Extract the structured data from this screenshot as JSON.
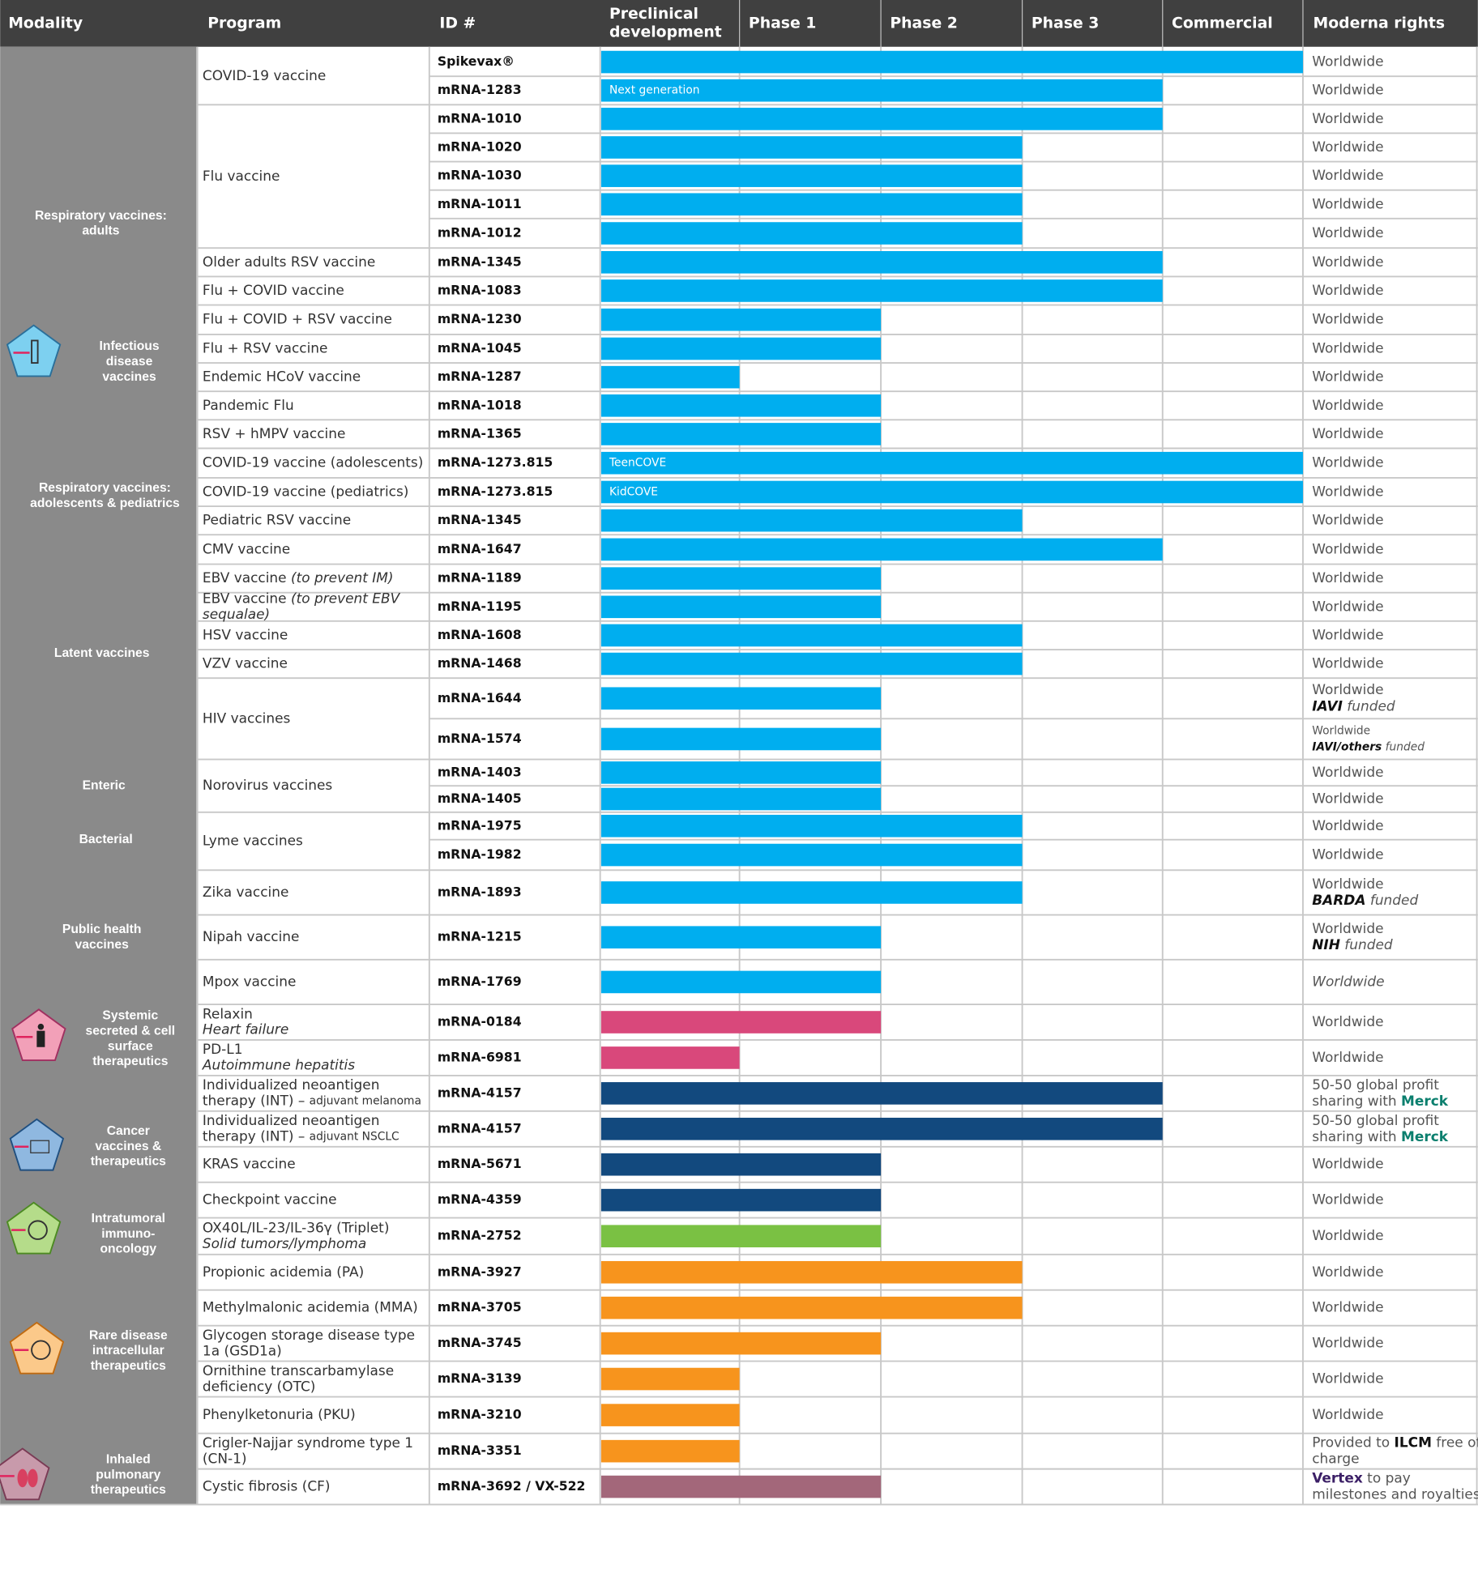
{
  "header": {
    "modality": "Modality",
    "program": "Program",
    "id": "ID #",
    "stages": [
      [
        "Preclinical",
        "development"
      ],
      [
        "Phase 1"
      ],
      [
        "Phase 2"
      ],
      [
        "Phase 3"
      ],
      [
        "Commercial"
      ]
    ],
    "rights": "Moderna rights"
  },
  "modalities": [
    {
      "label": [
        "Respiratory vaccines:",
        "adults"
      ]
    },
    {
      "label": [
        "Infectious",
        "disease",
        "vaccines"
      ]
    },
    {
      "label": [
        "Respiratory vaccines:",
        "adolescents & pediatrics"
      ]
    },
    {
      "label": [
        "Latent vaccines"
      ]
    },
    {
      "label": [
        "Enteric"
      ]
    },
    {
      "label": [
        "Bacterial"
      ]
    },
    {
      "label": [
        "Public health",
        "vaccines"
      ]
    },
    {
      "label": [
        "Systemic",
        "secreted & cell",
        "surface",
        "therapeutics"
      ]
    },
    {
      "label": [
        "Cancer",
        "vaccines &",
        "therapeutics"
      ]
    },
    {
      "label": [
        "Intratumoral",
        "immuno-",
        "oncology"
      ]
    },
    {
      "label": [
        "Rare disease",
        "intracellular",
        "therapeutics"
      ]
    },
    {
      "label": [
        "Inhaled",
        "pulmonary",
        "therapeutics"
      ]
    }
  ],
  "programs": [
    {
      "name": [
        [
          "COVID-19 vaccine"
        ]
      ],
      "color": "#00aeef",
      "entries": [
        {
          "id": "Spikevax®",
          "stage": 5,
          "rights": [
            [
              "Worldwide"
            ]
          ]
        },
        {
          "id": "mRNA-1283",
          "stage": 4,
          "bar_label": "Next generation",
          "rights": [
            [
              "Worldwide"
            ]
          ]
        }
      ]
    },
    {
      "name": [
        [
          "Flu vaccine"
        ]
      ],
      "color": "#00aeef",
      "entries": [
        {
          "id": "mRNA-1010",
          "stage": 4,
          "rights": [
            [
              "Worldwide"
            ]
          ]
        },
        {
          "id": "mRNA-1020",
          "stage": 3,
          "rights": [
            [
              "Worldwide"
            ]
          ]
        },
        {
          "id": "mRNA-1030",
          "stage": 3,
          "rights": [
            [
              "Worldwide"
            ]
          ]
        },
        {
          "id": "mRNA-1011",
          "stage": 3,
          "rights": [
            [
              "Worldwide"
            ]
          ]
        },
        {
          "id": "mRNA-1012",
          "stage": 3,
          "rights": [
            [
              "Worldwide"
            ]
          ]
        }
      ]
    },
    {
      "name": [
        [
          "Older adults RSV vaccine"
        ]
      ],
      "color": "#00aeef",
      "entries": [
        {
          "id": "mRNA-1345",
          "stage": 4,
          "rights": [
            [
              "Worldwide"
            ]
          ]
        }
      ]
    },
    {
      "name": [
        [
          "Flu + COVID vaccine"
        ]
      ],
      "color": "#00aeef",
      "entries": [
        {
          "id": "mRNA-1083",
          "stage": 4,
          "rights": [
            [
              "Worldwide"
            ]
          ]
        }
      ]
    },
    {
      "name": [
        [
          "Flu + COVID + RSV vaccine"
        ]
      ],
      "color": "#00aeef",
      "entries": [
        {
          "id": "mRNA-1230",
          "stage": 2,
          "rights": [
            [
              "Worldwide"
            ]
          ]
        }
      ]
    },
    {
      "name": [
        [
          "Flu + RSV vaccine"
        ]
      ],
      "color": "#00aeef",
      "entries": [
        {
          "id": "mRNA-1045",
          "stage": 2,
          "rights": [
            [
              "Worldwide"
            ]
          ]
        }
      ]
    },
    {
      "name": [
        [
          "Endemic HCoV vaccine"
        ]
      ],
      "color": "#00aeef",
      "entries": [
        {
          "id": "mRNA-1287",
          "stage": 1,
          "rights": [
            [
              "Worldwide"
            ]
          ]
        }
      ]
    },
    {
      "name": [
        [
          "Pandemic Flu"
        ]
      ],
      "color": "#00aeef",
      "entries": [
        {
          "id": "mRNA-1018",
          "stage": 2,
          "rights": [
            [
              "Worldwide"
            ]
          ]
        }
      ]
    },
    {
      "name": [
        [
          "RSV + hMPV vaccine"
        ]
      ],
      "color": "#00aeef",
      "entries": [
        {
          "id": "mRNA-1365",
          "stage": 2,
          "rights": [
            [
              "Worldwide"
            ]
          ]
        }
      ]
    },
    {
      "name": [
        [
          "COVID-19 vaccine (adolescents)"
        ]
      ],
      "color": "#00aeef",
      "entries": [
        {
          "id": "mRNA-1273.815",
          "stage": 5,
          "bar_label": "TeenCOVE",
          "rights": [
            [
              "Worldwide"
            ]
          ]
        }
      ]
    },
    {
      "name": [
        [
          "COVID-19 vaccine (pediatrics)"
        ]
      ],
      "color": "#00aeef",
      "entries": [
        {
          "id": "mRNA-1273.815",
          "stage": 5,
          "bar_label": "KidCOVE",
          "rights": [
            [
              "Worldwide"
            ]
          ]
        }
      ]
    },
    {
      "name": [
        [
          "Pediatric RSV vaccine"
        ]
      ],
      "color": "#00aeef",
      "entries": [
        {
          "id": "mRNA-1345",
          "stage": 3,
          "rights": [
            [
              "Worldwide"
            ]
          ]
        }
      ]
    },
    {
      "name": [
        [
          "CMV vaccine"
        ]
      ],
      "color": "#00aeef",
      "entries": [
        {
          "id": "mRNA-1647",
          "stage": 4,
          "rights": [
            [
              "Worldwide"
            ]
          ]
        }
      ]
    },
    {
      "name": [
        [
          "EBV vaccine ",
          {
            "text": "(to prevent IM)",
            "style": "italic"
          }
        ]
      ],
      "color": "#00aeef",
      "entries": [
        {
          "id": "mRNA-1189",
          "stage": 2,
          "rights": [
            [
              "Worldwide"
            ]
          ]
        }
      ]
    },
    {
      "name": [
        [
          "EBV vaccine ",
          {
            "text": "(to prevent EBV",
            "style": "italic"
          }
        ],
        [
          {
            "text": "sequalae)",
            "style": "italic"
          }
        ]
      ],
      "color": "#00aeef",
      "entries": [
        {
          "id": "mRNA-1195",
          "stage": 2,
          "rights": [
            [
              "Worldwide"
            ]
          ]
        }
      ]
    },
    {
      "name": [
        [
          "HSV vaccine"
        ]
      ],
      "color": "#00aeef",
      "entries": [
        {
          "id": "mRNA-1608",
          "stage": 3,
          "rights": [
            [
              "Worldwide"
            ]
          ]
        }
      ]
    },
    {
      "name": [
        [
          "VZV vaccine"
        ]
      ],
      "color": "#00aeef",
      "entries": [
        {
          "id": "mRNA-1468",
          "stage": 3,
          "rights": [
            [
              "Worldwide"
            ]
          ]
        }
      ]
    },
    {
      "name": [
        [
          "HIV vaccines"
        ]
      ],
      "color": "#00aeef",
      "entries": [
        {
          "id": "mRNA-1644",
          "stage": 2,
          "rights": [
            [
              "Worldwide"
            ],
            [
              {
                "text": "IAVI",
                "style": "bold-italic"
              },
              {
                "text": " funded",
                "style": "italic"
              }
            ]
          ]
        },
        {
          "id": "mRNA-1574",
          "stage": 2,
          "rights": [
            [
              {
                "text": "Worldwide",
                "style": "small"
              }
            ],
            [
              {
                "text": "IAVI/others",
                "style": "small-bold-italic"
              },
              {
                "text": " funded",
                "style": "small-italic"
              }
            ]
          ]
        }
      ]
    },
    {
      "name": [
        [
          "Norovirus vaccines"
        ]
      ],
      "color": "#00aeef",
      "entries": [
        {
          "id": "mRNA-1403",
          "stage": 2,
          "rights": [
            [
              "Worldwide"
            ]
          ]
        },
        {
          "id": "mRNA-1405",
          "stage": 2,
          "rights": [
            [
              "Worldwide"
            ]
          ]
        }
      ]
    },
    {
      "name": [
        [
          "Lyme vaccines"
        ]
      ],
      "color": "#00aeef",
      "entries": [
        {
          "id": "mRNA-1975",
          "stage": 3,
          "rights": [
            [
              "Worldwide"
            ]
          ]
        },
        {
          "id": "mRNA-1982",
          "stage": 3,
          "rights": [
            [
              "Worldwide"
            ]
          ]
        }
      ]
    },
    {
      "name": [
        [
          "Zika vaccine"
        ]
      ],
      "color": "#00aeef",
      "entries": [
        {
          "id": "mRNA-1893",
          "stage": 3,
          "rights": [
            [
              "Worldwide"
            ],
            [
              {
                "text": "BARDA",
                "style": "bold-italic"
              },
              {
                "text": " funded",
                "style": "italic"
              }
            ]
          ]
        }
      ]
    },
    {
      "name": [
        [
          "Nipah vaccine"
        ]
      ],
      "color": "#00aeef",
      "entries": [
        {
          "id": "mRNA-1215",
          "stage": 2,
          "rights": [
            [
              "Worldwide"
            ],
            [
              {
                "text": "NIH",
                "style": "bold-italic"
              },
              {
                "text": " funded",
                "style": "italic"
              }
            ]
          ]
        }
      ]
    },
    {
      "name": [
        [
          "Mpox vaccine"
        ]
      ],
      "color": "#00aeef",
      "entries": [
        {
          "id": "mRNA-1769",
          "stage": 2,
          "rights": [
            [
              {
                "text": "Worldwide",
                "style": "italic"
              }
            ]
          ]
        }
      ]
    },
    {
      "name": [
        [
          "Relaxin"
        ],
        [
          {
            "text": "Heart failure",
            "style": "italic"
          }
        ]
      ],
      "color": "#d9487b",
      "entries": [
        {
          "id": "mRNA-0184",
          "stage": 2,
          "rights": [
            [
              "Worldwide"
            ]
          ]
        }
      ]
    },
    {
      "name": [
        [
          "PD-L1"
        ],
        [
          {
            "text": "Autoimmune hepatitis",
            "style": "italic"
          }
        ]
      ],
      "color": "#d9487b",
      "entries": [
        {
          "id": "mRNA-6981",
          "stage": 1,
          "rights": [
            [
              "Worldwide"
            ]
          ]
        }
      ]
    },
    {
      "name": [
        [
          "Individualized neoantigen"
        ],
        [
          "therapy (INT) – ",
          {
            "text": "adjuvant melanoma",
            "style": "small"
          }
        ]
      ],
      "color": "#12497e",
      "entries": [
        {
          "id": "mRNA-4157",
          "stage": 4,
          "rights": [
            [
              "50-50 global profit"
            ],
            [
              "sharing with ",
              {
                "text": "Merck",
                "style": "bold-teal"
              }
            ]
          ]
        }
      ]
    },
    {
      "name": [
        [
          "Individualized neoantigen"
        ],
        [
          "therapy (INT) – ",
          {
            "text": "adjuvant NSCLC",
            "style": "small"
          }
        ]
      ],
      "color": "#12497e",
      "entries": [
        {
          "id": "mRNA-4157",
          "stage": 4,
          "rights": [
            [
              "50-50 global profit"
            ],
            [
              "sharing with ",
              {
                "text": "Merck",
                "style": "bold-teal"
              }
            ]
          ]
        }
      ]
    },
    {
      "name": [
        [
          "KRAS vaccine"
        ]
      ],
      "color": "#12497e",
      "entries": [
        {
          "id": "mRNA-5671",
          "stage": 2,
          "rights": [
            [
              "Worldwide"
            ]
          ]
        }
      ]
    },
    {
      "name": [
        [
          "Checkpoint vaccine"
        ]
      ],
      "color": "#12497e",
      "entries": [
        {
          "id": "mRNA-4359",
          "stage": 2,
          "rights": [
            [
              "Worldwide"
            ]
          ]
        }
      ]
    },
    {
      "name": [
        [
          "OX40L/IL-23/IL-36γ (Triplet)"
        ],
        [
          {
            "text": "Solid tumors/lymphoma",
            "style": "italic"
          }
        ]
      ],
      "color": "#7ac143",
      "entries": [
        {
          "id": "mRNA-2752",
          "stage": 2,
          "rights": [
            [
              "Worldwide"
            ]
          ]
        }
      ]
    },
    {
      "name": [
        [
          "Propionic acidemia (PA)"
        ]
      ],
      "color": "#f7941d",
      "entries": [
        {
          "id": "mRNA-3927",
          "stage": 3,
          "rights": [
            [
              "Worldwide"
            ]
          ]
        }
      ]
    },
    {
      "name": [
        [
          "Methylmalonic acidemia (MMA)"
        ]
      ],
      "color": "#f7941d",
      "entries": [
        {
          "id": "mRNA-3705",
          "stage": 3,
          "rights": [
            [
              "Worldwide"
            ]
          ]
        }
      ]
    },
    {
      "name": [
        [
          "Glycogen storage disease type"
        ],
        [
          "1a (GSD1a)"
        ]
      ],
      "color": "#f7941d",
      "entries": [
        {
          "id": "mRNA-3745",
          "stage": 2,
          "rights": [
            [
              "Worldwide"
            ]
          ]
        }
      ]
    },
    {
      "name": [
        [
          "Ornithine transcarbamylase"
        ],
        [
          "deficiency (OTC)"
        ]
      ],
      "color": "#f7941d",
      "entries": [
        {
          "id": "mRNA-3139",
          "stage": 1,
          "rights": [
            [
              "Worldwide"
            ]
          ]
        }
      ]
    },
    {
      "name": [
        [
          "Phenylketonuria (PKU)"
        ]
      ],
      "color": "#f7941d",
      "entries": [
        {
          "id": "mRNA-3210",
          "stage": 1,
          "rights": [
            [
              "Worldwide"
            ]
          ]
        }
      ]
    },
    {
      "name": [
        [
          "Crigler-Najjar syndrome type 1"
        ],
        [
          "(CN-1)"
        ]
      ],
      "color": "#f7941d",
      "entries": [
        {
          "id": "mRNA-3351",
          "stage": 1,
          "rights": [
            [
              "Provided to ",
              {
                "text": "ILCM",
                "style": "bold"
              },
              " free of"
            ],
            [
              "charge"
            ]
          ]
        }
      ]
    },
    {
      "name": [
        [
          "Cystic fibrosis (CF)"
        ]
      ],
      "color": "#a3677a",
      "entries": [
        {
          "id": "mRNA-3692 / VX-522",
          "stage": 2,
          "rights": [
            [
              {
                "text": "Vertex",
                "style": "bold-purple"
              },
              " to pay"
            ],
            [
              "milestones and royalties"
            ]
          ]
        }
      ]
    }
  ]
}
